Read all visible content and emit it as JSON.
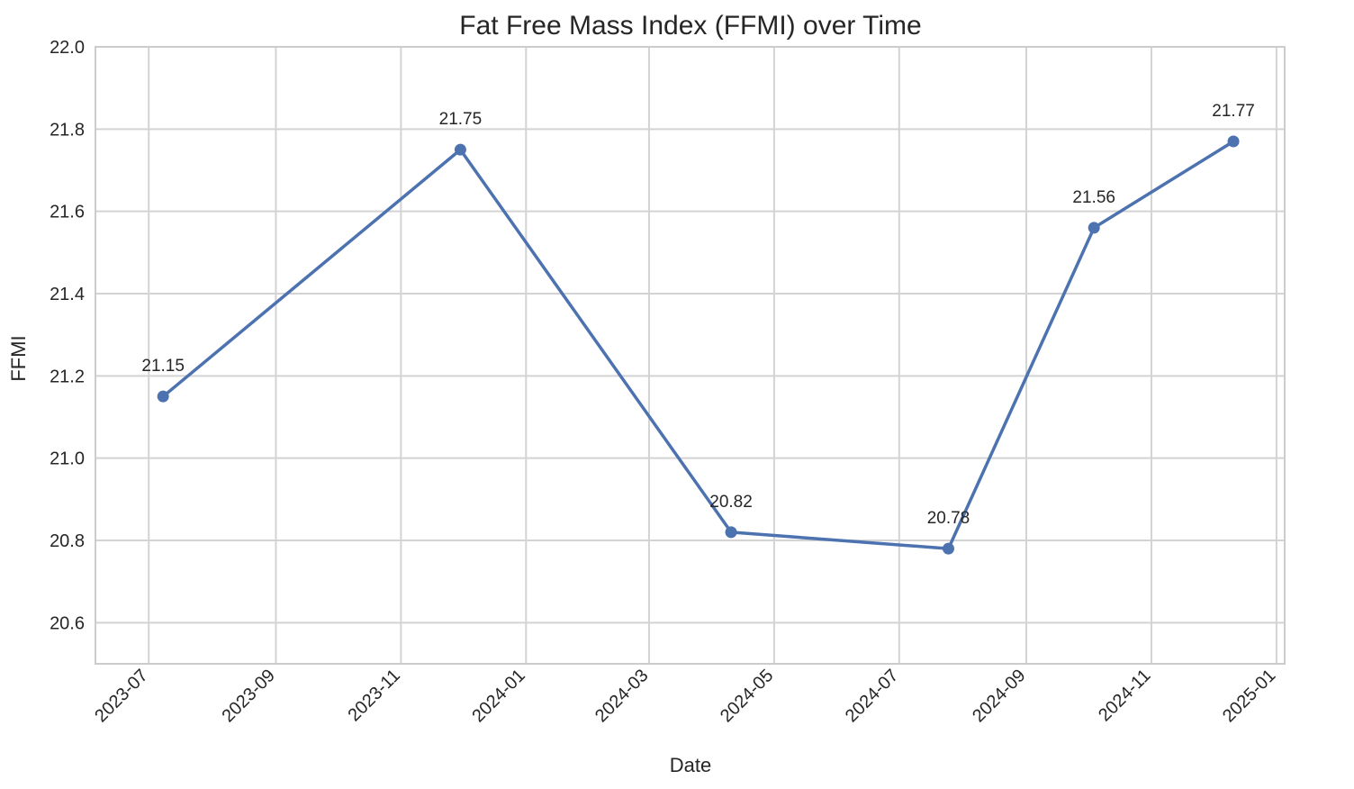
{
  "chart_data": {
    "type": "line",
    "title": "Fat Free Mass Index (FFMI) over Time",
    "xlabel": "Date",
    "ylabel": "FFMI",
    "ylim": [
      20.5,
      22.0
    ],
    "xlim": [
      "2023-06-05",
      "2025-01-05"
    ],
    "grid": true,
    "y_ticks": [
      20.6,
      20.8,
      21.0,
      21.2,
      21.4,
      21.6,
      21.8,
      22.0
    ],
    "x_ticks": [
      "2023-07",
      "2023-09",
      "2023-11",
      "2024-01",
      "2024-03",
      "2024-05",
      "2024-07",
      "2024-09",
      "2024-11",
      "2025-01"
    ],
    "series": [
      {
        "color": "#4c72b0",
        "points": [
          {
            "x": "2023-07-08",
            "y": 21.15,
            "label": "21.15"
          },
          {
            "x": "2023-11-30",
            "y": 21.75,
            "label": "21.75"
          },
          {
            "x": "2024-04-10",
            "y": 20.82,
            "label": "20.82"
          },
          {
            "x": "2024-07-25",
            "y": 20.78,
            "label": "20.78"
          },
          {
            "x": "2024-10-04",
            "y": 21.56,
            "label": "21.56"
          },
          {
            "x": "2024-12-11",
            "y": 21.77,
            "label": "21.77"
          }
        ]
      }
    ]
  }
}
